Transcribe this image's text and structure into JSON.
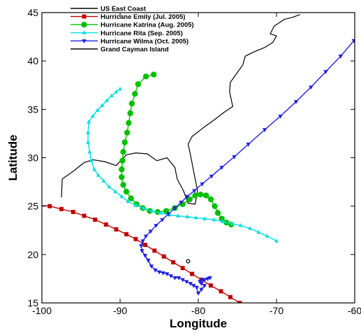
{
  "chart_data": {
    "type": "line",
    "title": "",
    "xlabel": "Longitude",
    "ylabel": "Latitude",
    "xlim": [
      -100,
      -60
    ],
    "ylim": [
      15,
      45
    ],
    "xticks": [
      -100,
      -90,
      -80,
      -70,
      -60
    ],
    "yticks": [
      15,
      20,
      25,
      30,
      35,
      40,
      45
    ],
    "grid": false,
    "legend_position": "top-center",
    "series": [
      {
        "name": "US East Coast",
        "color": "#000000",
        "marker": "none",
        "points": [
          [
            -97.5,
            25.9
          ],
          [
            -97.4,
            27.8
          ],
          [
            -96.0,
            28.6
          ],
          [
            -94.6,
            29.5
          ],
          [
            -93.5,
            29.8
          ],
          [
            -92.0,
            29.6
          ],
          [
            -90.5,
            29.2
          ],
          [
            -89.2,
            30.3
          ],
          [
            -88.0,
            30.5
          ],
          [
            -86.5,
            30.4
          ],
          [
            -85.3,
            29.7
          ],
          [
            -84.0,
            30.0
          ],
          [
            -83.0,
            29.0
          ],
          [
            -82.7,
            27.8
          ],
          [
            -81.9,
            26.6
          ],
          [
            -81.3,
            25.3
          ],
          [
            -80.4,
            25.2
          ],
          [
            -80.1,
            26.6
          ],
          [
            -80.6,
            28.6
          ],
          [
            -81.0,
            30.3
          ],
          [
            -81.3,
            31.4
          ],
          [
            -80.8,
            32.2
          ],
          [
            -79.2,
            33.2
          ],
          [
            -78.0,
            33.9
          ],
          [
            -76.7,
            34.7
          ],
          [
            -75.6,
            35.3
          ],
          [
            -76.0,
            36.8
          ],
          [
            -75.9,
            37.8
          ],
          [
            -75.1,
            38.7
          ],
          [
            -74.3,
            39.6
          ],
          [
            -74.0,
            40.5
          ],
          [
            -73.0,
            40.9
          ],
          [
            -71.5,
            41.4
          ],
          [
            -70.5,
            41.9
          ],
          [
            -70.0,
            42.6
          ],
          [
            -70.8,
            42.8
          ],
          [
            -70.3,
            43.6
          ],
          [
            -69.0,
            44.3
          ],
          [
            -68.0,
            44.5
          ],
          [
            -67.0,
            44.8
          ]
        ]
      },
      {
        "name": "Hurricane Emily (Jul. 2005)",
        "color": "#c00000",
        "marker": "square",
        "points": [
          [
            -100.5,
            25.1
          ],
          [
            -99.0,
            25.0
          ],
          [
            -97.5,
            24.7
          ],
          [
            -96.0,
            24.4
          ],
          [
            -94.6,
            24.0
          ],
          [
            -93.2,
            23.6
          ],
          [
            -91.8,
            23.1
          ],
          [
            -90.5,
            22.6
          ],
          [
            -89.2,
            22.1
          ],
          [
            -88.0,
            21.6
          ],
          [
            -86.8,
            21.0
          ],
          [
            -85.6,
            20.4
          ],
          [
            -84.4,
            19.8
          ],
          [
            -83.2,
            19.2
          ],
          [
            -82.0,
            18.6
          ],
          [
            -80.8,
            18.0
          ],
          [
            -79.6,
            17.4
          ],
          [
            -78.4,
            16.8
          ],
          [
            -77.1,
            16.2
          ],
          [
            -75.9,
            15.6
          ],
          [
            -74.7,
            15.0
          ],
          [
            -73.5,
            14.4
          ]
        ]
      },
      {
        "name": "Hurricane Katrina (Aug. 2005)",
        "color": "#00c000",
        "marker": "circle",
        "points": [
          [
            -75.8,
            23.1
          ],
          [
            -76.4,
            23.3
          ],
          [
            -77.0,
            23.7
          ],
          [
            -77.5,
            24.3
          ],
          [
            -77.9,
            25.0
          ],
          [
            -78.4,
            25.7
          ],
          [
            -79.0,
            26.1
          ],
          [
            -79.7,
            26.2
          ],
          [
            -80.4,
            26.1
          ],
          [
            -81.1,
            25.7
          ],
          [
            -82.0,
            25.2
          ],
          [
            -83.0,
            24.8
          ],
          [
            -84.1,
            24.5
          ],
          [
            -85.2,
            24.4
          ],
          [
            -86.2,
            24.5
          ],
          [
            -87.1,
            24.8
          ],
          [
            -87.9,
            25.2
          ],
          [
            -88.6,
            25.8
          ],
          [
            -89.2,
            26.5
          ],
          [
            -89.6,
            27.2
          ],
          [
            -89.8,
            28.0
          ],
          [
            -89.8,
            28.8
          ],
          [
            -89.7,
            29.7
          ],
          [
            -89.6,
            30.6
          ],
          [
            -89.4,
            31.6
          ],
          [
            -89.1,
            32.6
          ],
          [
            -88.9,
            33.6
          ],
          [
            -88.7,
            34.6
          ],
          [
            -88.5,
            35.6
          ],
          [
            -88.1,
            36.6
          ],
          [
            -87.7,
            37.6
          ],
          [
            -86.7,
            38.4
          ],
          [
            -85.7,
            38.6
          ]
        ]
      },
      {
        "name": "Hurricane Rita (Sep. 2005)",
        "color": "#00e0e0",
        "marker": "triangle-up",
        "points": [
          [
            -70.0,
            21.4
          ],
          [
            -71.2,
            21.9
          ],
          [
            -72.3,
            22.3
          ],
          [
            -73.4,
            22.7
          ],
          [
            -74.6,
            23.0
          ],
          [
            -75.7,
            23.2
          ],
          [
            -76.9,
            23.4
          ],
          [
            -78.0,
            23.6
          ],
          [
            -79.2,
            23.7
          ],
          [
            -80.3,
            23.8
          ],
          [
            -81.4,
            23.9
          ],
          [
            -82.6,
            24.0
          ],
          [
            -83.7,
            24.1
          ],
          [
            -84.8,
            24.3
          ],
          [
            -85.9,
            24.5
          ],
          [
            -87.0,
            24.8
          ],
          [
            -88.0,
            25.1
          ],
          [
            -89.0,
            25.5
          ],
          [
            -89.8,
            26.0
          ],
          [
            -90.6,
            26.5
          ],
          [
            -91.4,
            27.0
          ],
          [
            -92.1,
            27.6
          ],
          [
            -92.8,
            28.2
          ],
          [
            -93.3,
            28.8
          ],
          [
            -93.7,
            29.7
          ],
          [
            -93.9,
            30.6
          ],
          [
            -94.1,
            31.6
          ],
          [
            -94.1,
            32.6
          ],
          [
            -94.0,
            33.7
          ],
          [
            -93.5,
            34.3
          ],
          [
            -92.9,
            34.9
          ],
          [
            -92.3,
            35.4
          ],
          [
            -91.7,
            35.9
          ],
          [
            -91.1,
            36.4
          ],
          [
            -90.5,
            36.8
          ],
          [
            -90.0,
            37.1
          ]
        ]
      },
      {
        "name": "Hurricane Wilma (Oct. 2005)",
        "color": "#2020e0",
        "marker": "triangle-down",
        "points": [
          [
            -78.5,
            17.6
          ],
          [
            -78.8,
            17.5
          ],
          [
            -79.2,
            17.4
          ],
          [
            -79.5,
            17.4
          ],
          [
            -79.8,
            17.2
          ],
          [
            -79.6,
            17.0
          ],
          [
            -79.2,
            16.8
          ],
          [
            -79.6,
            16.4
          ],
          [
            -80.0,
            16.0
          ],
          [
            -80.2,
            16.6
          ],
          [
            -80.6,
            16.8
          ],
          [
            -81.0,
            17.0
          ],
          [
            -81.5,
            17.2
          ],
          [
            -82.0,
            17.4
          ],
          [
            -82.5,
            17.6
          ],
          [
            -83.0,
            17.6
          ],
          [
            -83.5,
            17.8
          ],
          [
            -84.0,
            18.0
          ],
          [
            -84.5,
            18.1
          ],
          [
            -85.0,
            18.2
          ],
          [
            -85.5,
            18.4
          ],
          [
            -86.0,
            18.8
          ],
          [
            -86.4,
            19.4
          ],
          [
            -86.8,
            19.9
          ],
          [
            -87.2,
            20.4
          ],
          [
            -87.3,
            20.9
          ],
          [
            -87.1,
            21.4
          ],
          [
            -86.7,
            21.9
          ],
          [
            -86.1,
            22.4
          ],
          [
            -85.4,
            23.0
          ],
          [
            -84.6,
            23.6
          ],
          [
            -83.8,
            24.2
          ],
          [
            -83.0,
            24.8
          ],
          [
            -82.2,
            25.4
          ],
          [
            -81.4,
            26.0
          ],
          [
            -80.5,
            26.6
          ],
          [
            -79.5,
            27.3
          ],
          [
            -78.3,
            28.1
          ],
          [
            -77.0,
            29.0
          ],
          [
            -75.4,
            30.1
          ],
          [
            -73.6,
            31.4
          ],
          [
            -71.5,
            32.9
          ],
          [
            -69.5,
            34.3
          ],
          [
            -67.5,
            35.8
          ],
          [
            -65.6,
            37.3
          ],
          [
            -63.7,
            38.9
          ],
          [
            -61.8,
            40.5
          ],
          [
            -60.1,
            42.1
          ],
          [
            -58.5,
            43.6
          ]
        ]
      },
      {
        "name": "Grand Cayman Island",
        "color": "#000000",
        "marker": "hollow-circle",
        "points": [
          [
            -81.3,
            19.3
          ]
        ]
      }
    ]
  }
}
